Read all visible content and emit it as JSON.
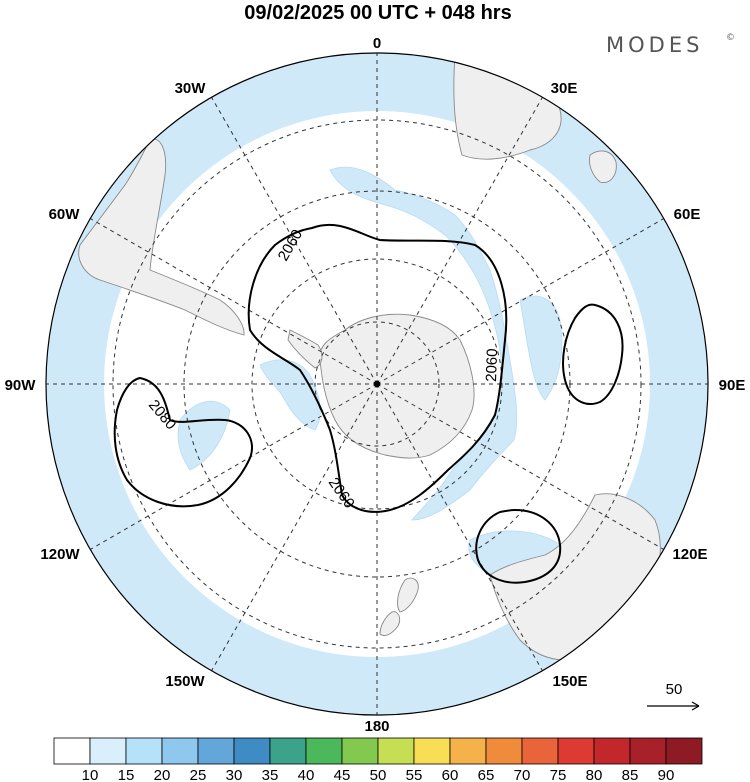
{
  "header": {
    "title": "09/02/2025  00 UTC  + 048 hrs",
    "brand": "MODES",
    "brand_mark": "©"
  },
  "map": {
    "projection": "south-polar-stereographic",
    "meridian_labels": [
      "0",
      "30E",
      "60E",
      "90E",
      "120E",
      "150E",
      "180",
      "150W",
      "120W",
      "90W",
      "60W",
      "30W"
    ],
    "contour_labels": [
      "2060",
      "2060",
      "2060",
      "2080"
    ],
    "contour_color": "#000000",
    "land_color": "#efefef",
    "wind_shade_color": "#cfe9f9"
  },
  "vector_legend": {
    "value": "50",
    "icon": "arrow-right-icon"
  },
  "colorbar": {
    "ticks": [
      "10",
      "15",
      "20",
      "25",
      "30",
      "35",
      "40",
      "45",
      "50",
      "55",
      "60",
      "65",
      "70",
      "75",
      "80",
      "85",
      "90"
    ],
    "colors": [
      "#ffffff",
      "#d9f0fc",
      "#b6e2f9",
      "#8ec8ee",
      "#63a7da",
      "#3f8bc4",
      "#3aa38a",
      "#4bb85b",
      "#84c94f",
      "#c5de54",
      "#f7de55",
      "#f6b24a",
      "#f08b3c",
      "#e9643a",
      "#dc3a33",
      "#c1272b",
      "#a8202a",
      "#8e1a23"
    ]
  }
}
